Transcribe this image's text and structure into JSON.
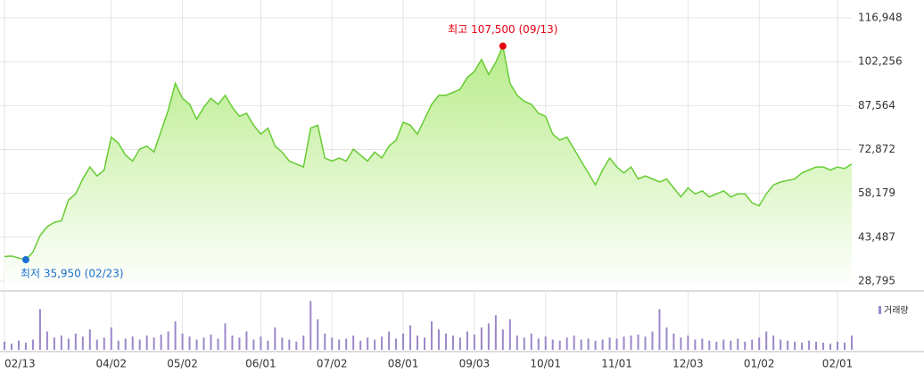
{
  "chart_data": [
    {
      "type": "line",
      "categories": [
        "02/13",
        null,
        null,
        null,
        null,
        null,
        null,
        null,
        null,
        null,
        null,
        null,
        null,
        null,
        null,
        "04/02",
        null,
        null,
        null,
        null,
        null,
        null,
        null,
        null,
        null,
        "05/02",
        null,
        null,
        null,
        null,
        null,
        null,
        null,
        null,
        null,
        null,
        "06/01",
        null,
        null,
        null,
        null,
        null,
        null,
        null,
        null,
        null,
        "07/02",
        null,
        null,
        null,
        null,
        null,
        null,
        null,
        null,
        null,
        "08/01",
        null,
        null,
        null,
        null,
        null,
        null,
        null,
        null,
        null,
        "09/03",
        null,
        null,
        null,
        null,
        null,
        null,
        null,
        null,
        null,
        "10/01",
        null,
        null,
        null,
        null,
        null,
        null,
        null,
        null,
        null,
        "11/01",
        null,
        null,
        null,
        null,
        null,
        null,
        null,
        null,
        null,
        "12/03",
        null,
        null,
        null,
        null,
        null,
        null,
        null,
        null,
        null,
        "01/02",
        null,
        null,
        null,
        null,
        null,
        null,
        null,
        null,
        null,
        null,
        "02/01",
        null,
        null
      ],
      "values": [
        37000,
        37200,
        36500,
        35950,
        38500,
        44000,
        47000,
        48500,
        49000,
        56000,
        58000,
        63000,
        67000,
        64000,
        66000,
        77000,
        75000,
        71000,
        69000,
        73000,
        74000,
        72000,
        79000,
        86000,
        95000,
        90000,
        88000,
        83000,
        87000,
        90000,
        88000,
        91000,
        87000,
        84000,
        85000,
        81000,
        78000,
        80000,
        74000,
        72000,
        69000,
        68000,
        67000,
        80000,
        81000,
        70000,
        69000,
        70000,
        69000,
        73000,
        71000,
        69000,
        72000,
        70000,
        74000,
        76000,
        82000,
        81000,
        78000,
        83000,
        88000,
        91000,
        91000,
        92000,
        93000,
        97000,
        99000,
        103000,
        98000,
        102000,
        107500,
        95000,
        91000,
        89000,
        88000,
        85000,
        84000,
        78000,
        76000,
        77000,
        73000,
        69000,
        65000,
        61000,
        66000,
        70000,
        67000,
        65000,
        67000,
        63000,
        64000,
        63000,
        62000,
        63000,
        60000,
        57000,
        60000,
        58000,
        59000,
        57000,
        58000,
        59000,
        57000,
        58000,
        58000,
        55000,
        54000,
        58000,
        61000,
        62000,
        62500,
        63000,
        65000,
        66000,
        67000,
        67000,
        66000,
        67000,
        66500,
        68000
      ],
      "color": "#66cc33",
      "ylim": [
        28795,
        116948
      ],
      "yticks": [
        {
          "value": 28795,
          "label": "28,795"
        },
        {
          "value": 43487,
          "label": "43,487"
        },
        {
          "value": 58179,
          "label": "58,179"
        },
        {
          "value": 72872,
          "label": "72,872"
        },
        {
          "value": 87564,
          "label": "87,564"
        },
        {
          "value": 102256,
          "label": "102,256"
        },
        {
          "value": 116948,
          "label": "116,948"
        }
      ],
      "grid": true,
      "annotations": [
        {
          "text": "최고 107,500 (09/13)",
          "value": 107500,
          "color": "#e60012"
        },
        {
          "text": "최저 35,950 (02/23)",
          "value": 35950,
          "color": "#1a6fd0"
        }
      ]
    },
    {
      "type": "bar",
      "series": [
        {
          "name": "거래량",
          "color": "#9b87c9",
          "values": [
            8,
            6,
            9,
            7,
            10,
            40,
            18,
            12,
            14,
            11,
            16,
            13,
            20,
            10,
            12,
            22,
            9,
            11,
            13,
            10,
            14,
            12,
            15,
            18,
            28,
            16,
            13,
            10,
            12,
            15,
            11,
            26,
            14,
            12,
            18,
            10,
            13,
            9,
            22,
            12,
            10,
            8,
            14,
            48,
            30,
            16,
            12,
            10,
            11,
            14,
            9,
            12,
            10,
            13,
            18,
            11,
            16,
            24,
            14,
            12,
            28,
            20,
            16,
            14,
            12,
            18,
            15,
            22,
            26,
            34,
            20,
            30,
            14,
            12,
            16,
            11,
            13,
            10,
            9,
            12,
            14,
            10,
            11,
            9,
            10,
            12,
            11,
            13,
            14,
            15,
            13,
            18,
            40,
            22,
            16,
            12,
            14,
            10,
            11,
            9,
            8,
            10,
            9,
            11,
            8,
            10,
            12,
            18,
            14,
            10,
            9,
            8,
            7,
            9,
            8,
            7,
            6,
            8,
            7,
            14
          ]
        }
      ],
      "ylim": [
        0,
        50
      ]
    }
  ]
}
